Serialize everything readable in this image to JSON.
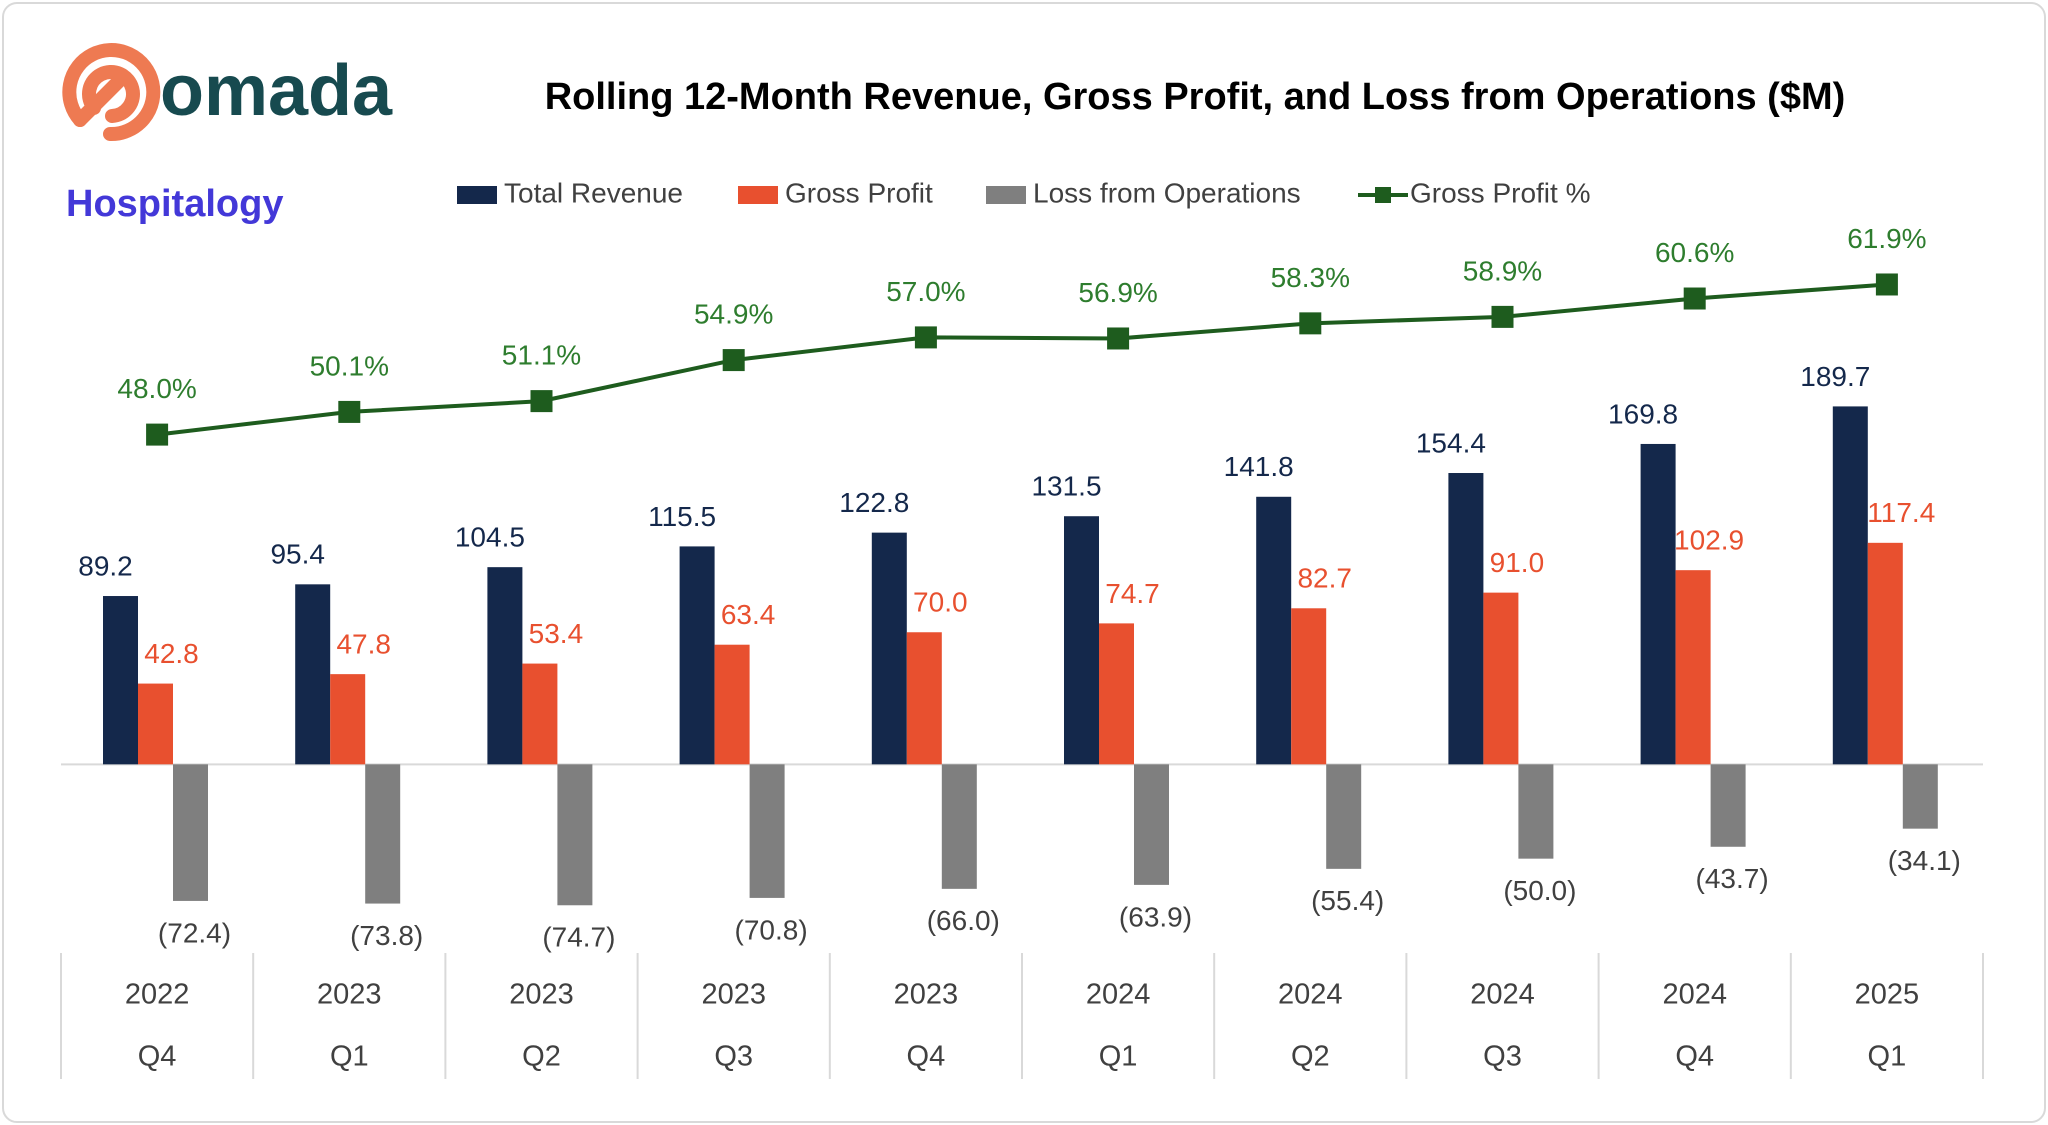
{
  "logos": {
    "brand": "omada",
    "source": "Hospitalogy"
  },
  "chart_data": {
    "type": "bar",
    "title": "Rolling 12-Month Revenue, Gross Profit, and Loss from Operations ($M)",
    "categories": [
      {
        "year": "2022",
        "quarter": "Q4"
      },
      {
        "year": "2023",
        "quarter": "Q1"
      },
      {
        "year": "2023",
        "quarter": "Q2"
      },
      {
        "year": "2023",
        "quarter": "Q3"
      },
      {
        "year": "2023",
        "quarter": "Q4"
      },
      {
        "year": "2024",
        "quarter": "Q1"
      },
      {
        "year": "2024",
        "quarter": "Q2"
      },
      {
        "year": "2024",
        "quarter": "Q3"
      },
      {
        "year": "2024",
        "quarter": "Q4"
      },
      {
        "year": "2025",
        "quarter": "Q1"
      }
    ],
    "series": [
      {
        "name": "Total Revenue",
        "color": "#14284b",
        "label_color": "#14284b",
        "values": [
          89.2,
          95.4,
          104.5,
          115.5,
          122.8,
          131.5,
          141.8,
          154.4,
          169.8,
          189.7
        ],
        "value_labels": [
          "89.2",
          "95.4",
          "104.5",
          "115.5",
          "122.8",
          "131.5",
          "141.8",
          "154.4",
          "169.8",
          "189.7"
        ]
      },
      {
        "name": "Gross Profit",
        "color": "#e8502f",
        "label_color": "#e8502f",
        "values": [
          42.8,
          47.8,
          53.4,
          63.4,
          70.0,
          74.7,
          82.7,
          91.0,
          102.9,
          117.4
        ],
        "value_labels": [
          "42.8",
          "47.8",
          "53.4",
          "63.4",
          "70.0",
          "74.7",
          "82.7",
          "91.0",
          "102.9",
          "117.4"
        ]
      },
      {
        "name": "Loss from Operations",
        "color": "#7f7f7f",
        "label_color": "#404040",
        "values": [
          -72.4,
          -73.8,
          -74.7,
          -70.8,
          -66.0,
          -63.9,
          -55.4,
          -50.0,
          -43.7,
          -34.1
        ],
        "value_labels": [
          "(72.4)",
          "(73.8)",
          "(74.7)",
          "(70.8)",
          "(66.0)",
          "(63.9)",
          "(55.4)",
          "(50.0)",
          "(43.7)",
          "(34.1)"
        ]
      },
      {
        "name": "Gross Profit %",
        "color": "#1e5c1e",
        "label_color": "#2e7d2e",
        "axis": "y2",
        "type": "line",
        "values": [
          48.0,
          50.1,
          51.1,
          54.9,
          57.0,
          56.9,
          58.3,
          58.9,
          60.6,
          61.9
        ],
        "value_labels": [
          "48.0%",
          "50.1%",
          "51.1%",
          "54.9%",
          "57.0%",
          "56.9%",
          "58.3%",
          "58.9%",
          "60.6%",
          "61.9%"
        ]
      }
    ],
    "ylim": [
      -100,
      315
    ],
    "y2lim": [
      0,
      72.5
    ],
    "legend": "top"
  }
}
